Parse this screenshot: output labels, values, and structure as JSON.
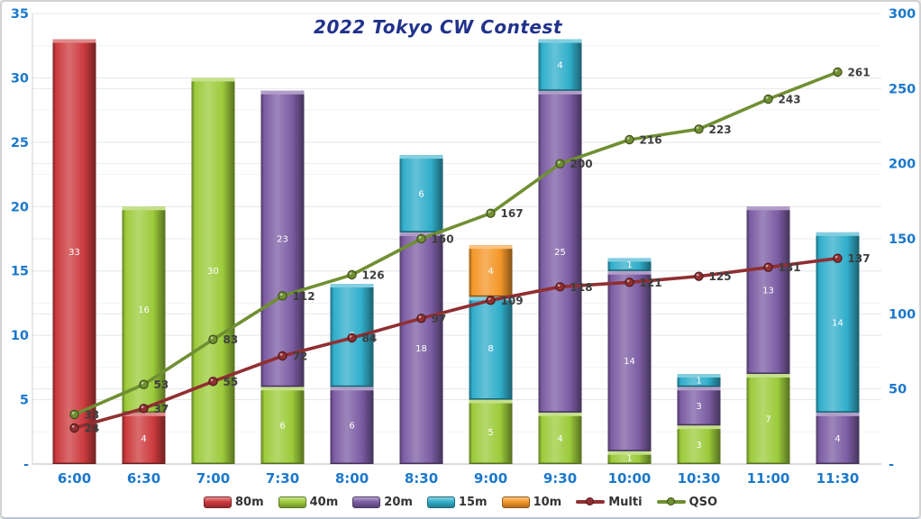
{
  "chart_data": {
    "type": "combo-stacked-bar-line",
    "title": "2022 Tokyo CW Contest",
    "categories": [
      "6:00",
      "6:30",
      "7:00",
      "7:30",
      "8:00",
      "8:30",
      "9:00",
      "9:30",
      "10:00",
      "10:30",
      "11:00",
      "11:30"
    ],
    "bar_series": [
      {
        "name": "80m",
        "color": "#CC3B3E",
        "values": [
          33,
          4,
          0,
          0,
          0,
          0,
          0,
          0,
          0,
          0,
          0,
          0
        ]
      },
      {
        "name": "40m",
        "color": "#9CCB3B",
        "values": [
          0,
          16,
          30,
          6,
          0,
          0,
          5,
          4,
          1,
          3,
          7,
          0
        ]
      },
      {
        "name": "20m",
        "color": "#7C5DA4",
        "values": [
          0,
          0,
          0,
          23,
          6,
          18,
          0,
          25,
          14,
          3,
          13,
          4
        ]
      },
      {
        "name": "15m",
        "color": "#31AECB",
        "values": [
          0,
          0,
          0,
          0,
          8,
          6,
          8,
          4,
          1,
          1,
          0,
          14
        ]
      },
      {
        "name": "10m",
        "color": "#F49729",
        "values": [
          0,
          0,
          0,
          0,
          0,
          0,
          4,
          0,
          0,
          0,
          0,
          0
        ]
      }
    ],
    "line_series": [
      {
        "name": "Multi",
        "color": "#902F32",
        "values": [
          24,
          37,
          55,
          72,
          84,
          97,
          109,
          118,
          121,
          125,
          131,
          137
        ]
      },
      {
        "name": "QSO",
        "color": "#708F32",
        "values": [
          33,
          53,
          83,
          112,
          126,
          150,
          167,
          200,
          216,
          223,
          243,
          261
        ]
      }
    ],
    "left_axis": {
      "min": 0,
      "max": 35,
      "major_step": 5,
      "minor_step": 2.5,
      "tick_labels": [
        "35",
        "30",
        "25",
        "20",
        "15",
        "10",
        "5",
        "-"
      ]
    },
    "right_axis": {
      "min": 0,
      "max": 300,
      "major_step": 50,
      "tick_labels": [
        "300",
        "250",
        "200",
        "150",
        "100",
        "50",
        "-"
      ]
    },
    "legend": [
      "80m",
      "40m",
      "20m",
      "15m",
      "10m",
      "Multi",
      "QSO"
    ],
    "legend_position": "bottom",
    "grid": true,
    "styles": {
      "title_color": "#21328C",
      "axis_label_color": "#1B78CC",
      "line_label_color": "#3E3E3E",
      "bar_label_color": "#FFFFFF",
      "background": "#FFFFFF"
    }
  }
}
